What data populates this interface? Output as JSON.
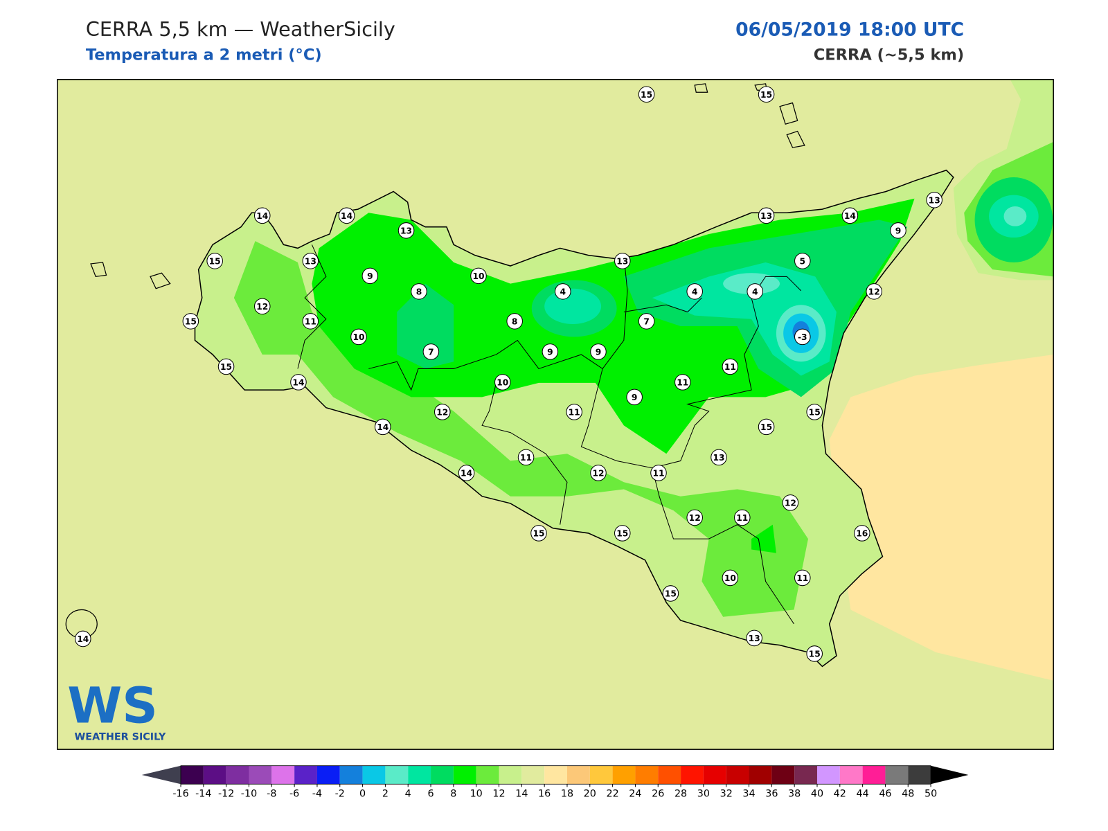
{
  "header": {
    "title": "CERRA 5,5 km — WeatherSicily",
    "subtitle": "Temperatura a 2 metri (°C)",
    "datetime": "06/05/2019 18:00 UTC",
    "model": "CERRA (~5,5 km)"
  },
  "stations": [
    15,
    15,
    14,
    14,
    13,
    15,
    13,
    9,
    10,
    13,
    13,
    14,
    13,
    9,
    5,
    4,
    4,
    4,
    12,
    8,
    12,
    15,
    11,
    10,
    8,
    7,
    -3,
    7,
    9,
    9,
    15,
    14,
    10,
    11,
    11,
    9,
    12,
    11,
    14,
    15,
    15,
    13,
    11,
    12,
    11,
    14,
    12,
    12,
    11,
    15,
    15,
    16,
    10,
    11,
    15,
    13,
    15,
    14
  ],
  "colorbar": {
    "ticks": [
      -16,
      -14,
      -12,
      -10,
      -8,
      -6,
      -4,
      -2,
      0,
      2,
      4,
      6,
      8,
      10,
      12,
      14,
      16,
      18,
      20,
      22,
      24,
      26,
      28,
      30,
      32,
      34,
      36,
      38,
      40,
      42,
      44,
      46,
      48,
      50
    ],
    "colors": [
      "#3c0050",
      "#5c0e85",
      "#7e2ea0",
      "#9b4bb8",
      "#dd73ea",
      "#5a22c8",
      "#0a1ef5",
      "#1480dc",
      "#0ac8e6",
      "#5aebc8",
      "#00e6a0",
      "#00dc60",
      "#00f000",
      "#6ceb3c",
      "#c8f08c",
      "#e1eb9e",
      "#ffe6a0",
      "#fcc878",
      "#ffc83c",
      "#ffa000",
      "#ff7d00",
      "#ff5000",
      "#ff1400",
      "#e60000",
      "#c80000",
      "#a00000",
      "#6e0014",
      "#782850",
      "#d296ff",
      "#ff78c8",
      "#ff1e96",
      "#7a7a7a",
      "#3c3c3c"
    ],
    "under_color": "#3f3f4f",
    "over_color": "#000000"
  },
  "logo": {
    "initials": "WS",
    "name": "WEATHER SICILY"
  }
}
